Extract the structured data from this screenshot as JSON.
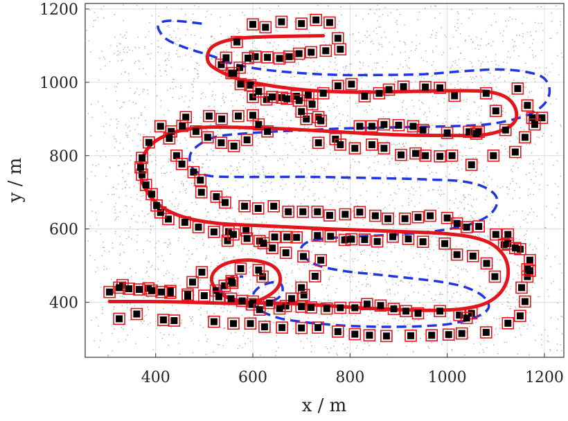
{
  "chart_data": {
    "type": "scatter",
    "xlabel": "x / m",
    "ylabel": "y / m",
    "xlim": [
      255,
      1240
    ],
    "ylim": [
      250,
      1215
    ],
    "xticks": [
      400,
      600,
      800,
      1000,
      1200
    ],
    "yticks": [
      400,
      600,
      800,
      1000,
      1200
    ],
    "grid": true,
    "colors": {
      "clutter": "#9a9a9a",
      "estimate_path": "#e4141c",
      "reference_path": "#1f35e0",
      "landmark_outline": "#e4141c",
      "landmark_fill": "#000000"
    },
    "estimate_path": [
      [
        745,
        1127
      ],
      [
        690,
        1126
      ],
      [
        620,
        1124
      ],
      [
        560,
        1118
      ],
      [
        520,
        1100
      ],
      [
        507,
        1075
      ],
      [
        512,
        1048
      ],
      [
        540,
        1025
      ],
      [
        580,
        1005
      ],
      [
        640,
        990
      ],
      [
        700,
        980
      ],
      [
        760,
        975
      ],
      [
        830,
        973
      ],
      [
        920,
        975
      ],
      [
        1010,
        977
      ],
      [
        1080,
        975
      ],
      [
        1120,
        960
      ],
      [
        1140,
        930
      ],
      [
        1140,
        895
      ],
      [
        1115,
        870
      ],
      [
        1070,
        856
      ],
      [
        1000,
        855
      ],
      [
        920,
        856
      ],
      [
        840,
        860
      ],
      [
        760,
        866
      ],
      [
        680,
        872
      ],
      [
        600,
        876
      ],
      [
        520,
        878
      ],
      [
        470,
        873
      ],
      [
        430,
        860
      ],
      [
        395,
        835
      ],
      [
        375,
        800
      ],
      [
        368,
        760
      ],
      [
        375,
        720
      ],
      [
        395,
        680
      ],
      [
        425,
        650
      ],
      [
        470,
        628
      ],
      [
        530,
        615
      ],
      [
        600,
        610
      ],
      [
        680,
        605
      ],
      [
        760,
        600
      ],
      [
        840,
        596
      ],
      [
        920,
        592
      ],
      [
        990,
        588
      ],
      [
        1050,
        578
      ],
      [
        1090,
        560
      ],
      [
        1115,
        530
      ],
      [
        1125,
        495
      ],
      [
        1122,
        455
      ],
      [
        1105,
        420
      ],
      [
        1075,
        395
      ],
      [
        1030,
        382
      ],
      [
        970,
        378
      ],
      [
        900,
        380
      ],
      [
        820,
        385
      ],
      [
        740,
        392
      ],
      [
        670,
        397
      ],
      [
        620,
        398
      ],
      [
        580,
        403
      ],
      [
        545,
        415
      ],
      [
        522,
        440
      ],
      [
        515,
        465
      ],
      [
        525,
        490
      ],
      [
        550,
        508
      ],
      [
        585,
        515
      ],
      [
        620,
        510
      ],
      [
        645,
        495
      ],
      [
        656,
        470
      ],
      [
        652,
        442
      ],
      [
        632,
        418
      ],
      [
        600,
        400
      ],
      [
        560,
        397
      ],
      [
        500,
        399
      ],
      [
        440,
        401
      ],
      [
        380,
        402
      ],
      [
        305,
        402
      ]
    ],
    "reference_path": [
      [
        495,
        1160
      ],
      [
        430,
        1168
      ],
      [
        405,
        1155
      ],
      [
        420,
        1120
      ],
      [
        460,
        1095
      ],
      [
        520,
        1070
      ],
      [
        560,
        1050
      ],
      [
        620,
        1035
      ],
      [
        700,
        1025
      ],
      [
        780,
        1020
      ],
      [
        860,
        1020
      ],
      [
        950,
        1022
      ],
      [
        1030,
        1030
      ],
      [
        1100,
        1035
      ],
      [
        1155,
        1030
      ],
      [
        1195,
        1015
      ],
      [
        1210,
        985
      ],
      [
        1205,
        950
      ],
      [
        1180,
        920
      ],
      [
        1140,
        900
      ],
      [
        1080,
        885
      ],
      [
        1000,
        880
      ],
      [
        920,
        878
      ],
      [
        850,
        876
      ],
      [
        780,
        874
      ],
      [
        720,
        870
      ],
      [
        650,
        866
      ],
      [
        580,
        860
      ],
      [
        520,
        850
      ],
      [
        480,
        820
      ],
      [
        470,
        790
      ],
      [
        480,
        760
      ],
      [
        510,
        745
      ],
      [
        560,
        742
      ],
      [
        640,
        742
      ],
      [
        720,
        742
      ],
      [
        800,
        740
      ],
      [
        880,
        738
      ],
      [
        960,
        735
      ],
      [
        1030,
        730
      ],
      [
        1075,
        715
      ],
      [
        1100,
        690
      ],
      [
        1100,
        660
      ],
      [
        1080,
        632
      ],
      [
        1040,
        610
      ],
      [
        980,
        595
      ],
      [
        900,
        585
      ],
      [
        820,
        580
      ],
      [
        760,
        575
      ],
      [
        720,
        568
      ],
      [
        700,
        550
      ],
      [
        705,
        525
      ],
      [
        735,
        500
      ],
      [
        790,
        485
      ],
      [
        860,
        475
      ],
      [
        930,
        465
      ],
      [
        990,
        455
      ],
      [
        1040,
        440
      ],
      [
        1075,
        415
      ],
      [
        1085,
        385
      ],
      [
        1060,
        360
      ],
      [
        1010,
        342
      ],
      [
        950,
        335
      ],
      [
        880,
        333
      ],
      [
        810,
        335
      ],
      [
        750,
        340
      ],
      [
        700,
        347
      ],
      [
        660,
        355
      ],
      [
        630,
        368
      ],
      [
        610,
        383
      ],
      [
        600,
        400
      ],
      [
        600,
        420
      ],
      [
        612,
        440
      ],
      [
        632,
        452
      ],
      [
        650,
        455
      ],
      [
        660,
        445
      ],
      [
        660,
        425
      ],
      [
        648,
        408
      ],
      [
        625,
        400
      ],
      [
        595,
        398
      ],
      [
        565,
        403
      ],
      [
        545,
        415
      ],
      [
        535,
        432
      ],
      [
        538,
        452
      ],
      [
        550,
        465
      ],
      [
        565,
        470
      ],
      [
        580,
        470
      ]
    ],
    "landmarks": [
      [
        305,
        428
      ],
      [
        332,
        447
      ],
      [
        385,
        438
      ],
      [
        430,
        431
      ],
      [
        466,
        416
      ],
      [
        476,
        455
      ],
      [
        495,
        482
      ],
      [
        524,
        432
      ],
      [
        542,
        445
      ],
      [
        558,
        453
      ],
      [
        548,
        568
      ],
      [
        550,
        593
      ],
      [
        586,
        596
      ],
      [
        614,
        567
      ],
      [
        645,
        578
      ],
      [
        670,
        578
      ],
      [
        690,
        577
      ],
      [
        733,
        582
      ],
      [
        760,
        580
      ],
      [
        789,
        570
      ],
      [
        803,
        572
      ],
      [
        830,
        571
      ],
      [
        856,
        566
      ],
      [
        888,
        579
      ],
      [
        920,
        573
      ],
      [
        950,
        565
      ],
      [
        995,
        560
      ],
      [
        1020,
        530
      ],
      [
        1053,
        526
      ],
      [
        1081,
        506
      ],
      [
        1098,
        470
      ],
      [
        1117,
        557
      ],
      [
        1125,
        585
      ],
      [
        1150,
        545
      ],
      [
        1170,
        515
      ],
      [
        1165,
        470
      ],
      [
        1153,
        440
      ],
      [
        1160,
        402
      ],
      [
        1150,
        363
      ],
      [
        1125,
        343
      ],
      [
        1080,
        318
      ],
      [
        1050,
        370
      ],
      [
        1025,
        365
      ],
      [
        985,
        376
      ],
      [
        940,
        370
      ],
      [
        915,
        376
      ],
      [
        890,
        382
      ],
      [
        863,
        391
      ],
      [
        835,
        395
      ],
      [
        810,
        385
      ],
      [
        780,
        385
      ],
      [
        752,
        383
      ],
      [
        720,
        386
      ],
      [
        700,
        388
      ],
      [
        668,
        390
      ],
      [
        634,
        398
      ],
      [
        600,
        402
      ],
      [
        578,
        404
      ],
      [
        555,
        410
      ],
      [
        530,
        415
      ],
      [
        500,
        418
      ],
      [
        466,
        421
      ],
      [
        430,
        426
      ],
      [
        412,
        428
      ],
      [
        392,
        432
      ],
      [
        366,
        435
      ],
      [
        345,
        437
      ],
      [
        325,
        440
      ],
      [
        520,
        347
      ],
      [
        560,
        342
      ],
      [
        595,
        342
      ],
      [
        624,
        333
      ],
      [
        660,
        331
      ],
      [
        700,
        330
      ],
      [
        734,
        331
      ],
      [
        775,
        320
      ],
      [
        810,
        313
      ],
      [
        840,
        310
      ],
      [
        875,
        308
      ],
      [
        925,
        309
      ],
      [
        968,
        310
      ],
      [
        1003,
        312
      ],
      [
        1030,
        315
      ],
      [
        1040,
        357
      ],
      [
        325,
        355
      ],
      [
        361,
        368
      ],
      [
        416,
        352
      ],
      [
        438,
        350
      ],
      [
        620,
        470
      ],
      [
        612,
        488
      ],
      [
        575,
        492
      ],
      [
        556,
        458
      ],
      [
        598,
        394
      ],
      [
        614,
        380
      ],
      [
        655,
        383
      ],
      [
        680,
        410
      ],
      [
        705,
        420
      ],
      [
        700,
        440
      ],
      [
        728,
        471
      ],
      [
        740,
        515
      ],
      [
        704,
        525
      ],
      [
        668,
        535
      ],
      [
        640,
        548
      ],
      [
        622,
        561
      ],
      [
        588,
        574
      ],
      [
        560,
        585
      ],
      [
        520,
        592
      ],
      [
        488,
        605
      ],
      [
        460,
        618
      ],
      [
        426,
        627
      ],
      [
        410,
        645
      ],
      [
        402,
        664
      ],
      [
        392,
        695
      ],
      [
        380,
        720
      ],
      [
        372,
        748
      ],
      [
        369,
        768
      ],
      [
        372,
        794
      ],
      [
        386,
        836
      ],
      [
        410,
        880
      ],
      [
        462,
        905
      ],
      [
        510,
        908
      ],
      [
        536,
        900
      ],
      [
        570,
        908
      ],
      [
        600,
        910
      ],
      [
        612,
        885
      ],
      [
        630,
        866
      ],
      [
        588,
        843
      ],
      [
        561,
        826
      ],
      [
        535,
        835
      ],
      [
        507,
        850
      ],
      [
        483,
        866
      ],
      [
        455,
        881
      ],
      [
        432,
        866
      ],
      [
        428,
        847
      ],
      [
        443,
        800
      ],
      [
        454,
        777
      ],
      [
        478,
        755
      ],
      [
        492,
        733
      ],
      [
        494,
        700
      ],
      [
        525,
        688
      ],
      [
        543,
        672
      ],
      [
        583,
        662
      ],
      [
        611,
        656
      ],
      [
        643,
        662
      ],
      [
        673,
        647
      ],
      [
        703,
        647
      ],
      [
        733,
        647
      ],
      [
        758,
        637
      ],
      [
        790,
        640
      ],
      [
        820,
        646
      ],
      [
        852,
        636
      ],
      [
        878,
        628
      ],
      [
        913,
        628
      ],
      [
        940,
        632
      ],
      [
        965,
        636
      ],
      [
        1000,
        630
      ],
      [
        1020,
        615
      ],
      [
        1040,
        605
      ],
      [
        1065,
        607
      ],
      [
        1100,
        585
      ],
      [
        1125,
        560
      ],
      [
        1140,
        548
      ],
      [
        1165,
        490
      ],
      [
        1170,
        486
      ],
      [
        1175,
        903
      ],
      [
        1195,
        903
      ],
      [
        1165,
        937
      ],
      [
        1145,
        983
      ],
      [
        1100,
        922
      ],
      [
        1080,
        970
      ],
      [
        1065,
        865
      ],
      [
        1045,
        865
      ],
      [
        1015,
        963
      ],
      [
        985,
        985
      ],
      [
        955,
        987
      ],
      [
        910,
        988
      ],
      [
        880,
        980
      ],
      [
        860,
        970
      ],
      [
        830,
        962
      ],
      [
        803,
        995
      ],
      [
        775,
        990
      ],
      [
        745,
        970
      ],
      [
        714,
        965
      ],
      [
        690,
        962
      ],
      [
        660,
        958
      ],
      [
        628,
        953
      ],
      [
        600,
        960
      ],
      [
        575,
        995
      ],
      [
        556,
        1025
      ],
      [
        535,
        1048
      ],
      [
        545,
        1067
      ],
      [
        567,
        1110
      ],
      [
        600,
        1158
      ],
      [
        626,
        1150
      ],
      [
        659,
        1165
      ],
      [
        700,
        1160
      ],
      [
        730,
        1170
      ],
      [
        758,
        1163
      ],
      [
        775,
        1120
      ],
      [
        780,
        1090
      ],
      [
        750,
        1086
      ],
      [
        720,
        1082
      ],
      [
        695,
        1078
      ],
      [
        675,
        1070
      ],
      [
        655,
        1065
      ],
      [
        630,
        1068
      ],
      [
        605,
        1070
      ],
      [
        590,
        1066
      ],
      [
        573,
        1040
      ],
      [
        560,
        1025
      ],
      [
        595,
        992
      ],
      [
        612,
        975
      ],
      [
        640,
        960
      ],
      [
        670,
        955
      ],
      [
        695,
        950
      ],
      [
        722,
        940
      ],
      [
        735,
        905
      ],
      [
        740,
        895
      ],
      [
        710,
        900
      ],
      [
        700,
        920
      ],
      [
        735,
        835
      ],
      [
        770,
        845
      ],
      [
        780,
        830
      ],
      [
        810,
        820
      ],
      [
        845,
        830
      ],
      [
        870,
        820
      ],
      [
        905,
        802
      ],
      [
        935,
        806
      ],
      [
        955,
        800
      ],
      [
        985,
        798
      ],
      [
        1010,
        800
      ],
      [
        1050,
        775
      ],
      [
        1095,
        800
      ],
      [
        1140,
        810
      ],
      [
        1160,
        850
      ],
      [
        1180,
        885
      ],
      [
        1120,
        870
      ],
      [
        1060,
        860
      ],
      [
        1000,
        862
      ],
      [
        950,
        870
      ],
      [
        930,
        880
      ],
      [
        900,
        883
      ],
      [
        870,
        885
      ],
      [
        845,
        880
      ],
      [
        820,
        880
      ]
    ]
  }
}
